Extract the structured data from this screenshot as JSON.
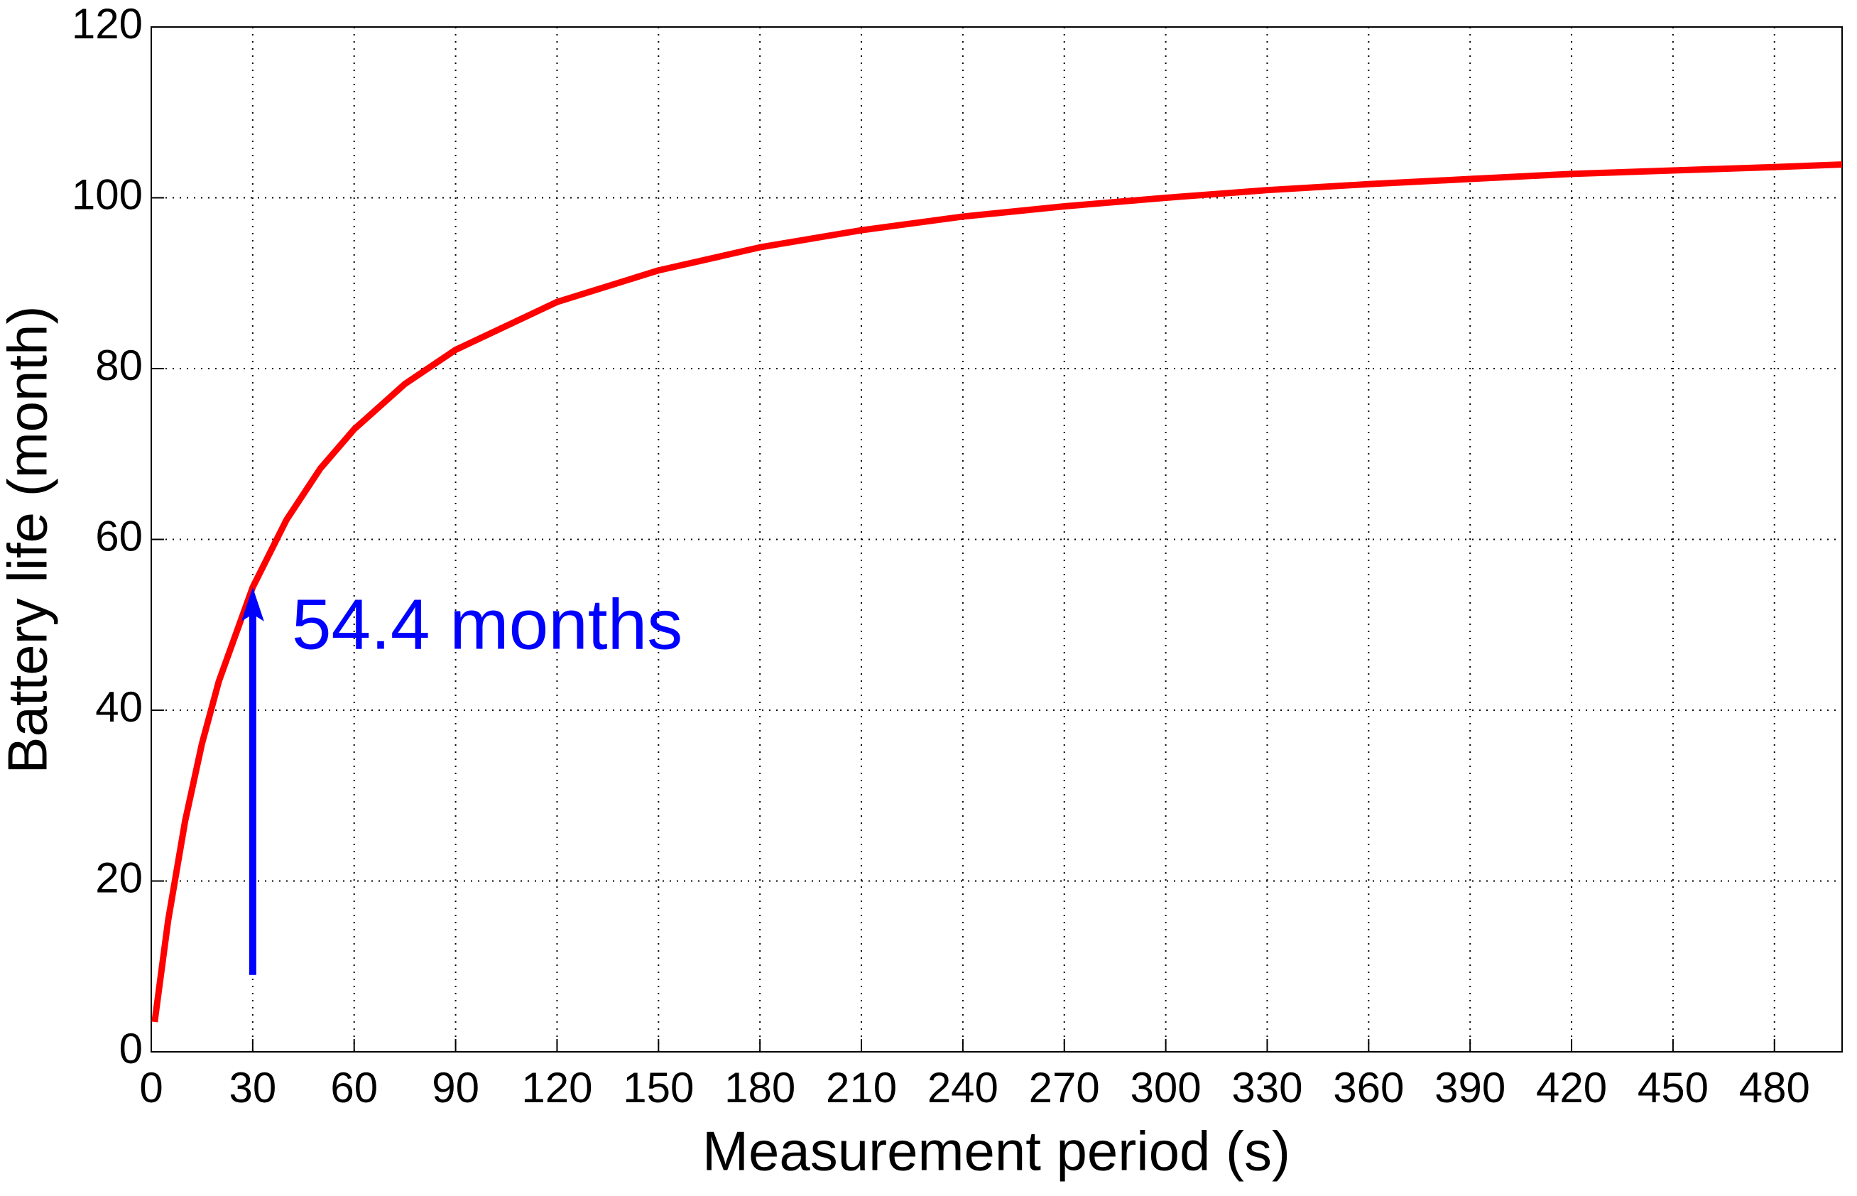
{
  "chart_data": {
    "type": "line",
    "xlabel": "Measurement period (s)",
    "ylabel": "Battery life (month)",
    "x": [
      1,
      5,
      10,
      15,
      20,
      30,
      40,
      50,
      60,
      75,
      90,
      120,
      150,
      180,
      210,
      240,
      270,
      300,
      330,
      360,
      390,
      420,
      450,
      480,
      500
    ],
    "series": [
      {
        "color": "#ff0000",
        "values": [
          3.5,
          15.4,
          27.0,
          36.1,
          43.4,
          54.4,
          62.3,
          68.3,
          72.9,
          78.2,
          82.2,
          87.8,
          91.5,
          94.2,
          96.2,
          97.8,
          99.0,
          100.0,
          100.9,
          101.6,
          102.2,
          102.8,
          103.2,
          103.6,
          103.9
        ]
      }
    ],
    "xlim": [
      0,
      500
    ],
    "xticks": [
      0,
      30,
      60,
      90,
      120,
      150,
      180,
      210,
      240,
      270,
      300,
      330,
      360,
      390,
      420,
      450,
      480
    ],
    "ylim": [
      0,
      120
    ],
    "yticks": [
      0,
      20,
      40,
      60,
      80,
      100,
      120
    ],
    "grid": true,
    "annotation": {
      "text": "54.4 months",
      "x": 30,
      "y": 54.4,
      "arrow_from": 9,
      "color": "#0000ff"
    }
  }
}
